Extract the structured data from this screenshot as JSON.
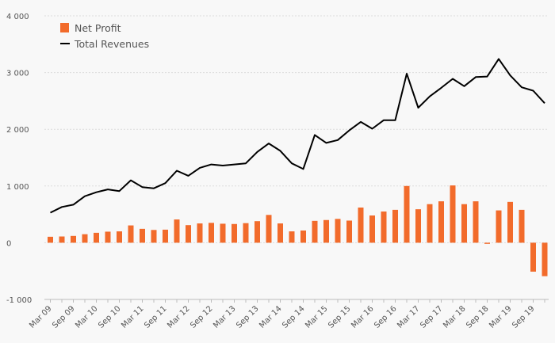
{
  "chart_data": {
    "type": "bar",
    "title": "",
    "xlabel": "",
    "ylabel": "",
    "ylim": [
      -1000,
      4000
    ],
    "yticks": [
      -1000,
      0,
      1000,
      2000,
      3000,
      4000
    ],
    "ytick_labels": [
      "-1 000",
      "0",
      "1 000",
      "2 000",
      "3 000",
      "4 000"
    ],
    "xtick_labels": [
      "Mar 09",
      "Sep 09",
      "Mar 10",
      "Sep 10",
      "Mar 11",
      "Sep 11",
      "Mar 12",
      "Sep 12",
      "Mar 13",
      "Sep 13",
      "Mar 14",
      "Sep 14",
      "Mar 15",
      "Sep 15",
      "Mar 16",
      "Sep 16",
      "Mar 17",
      "Sep 17",
      "Mar 18",
      "Sep 18",
      "Mar 19",
      "Sep 19"
    ],
    "legend": {
      "placement": "top-left"
    },
    "series": [
      {
        "name": "Net Profit",
        "kind": "bar",
        "color": "#f26b2b",
        "values": [
          105,
          110,
          120,
          150,
          175,
          195,
          200,
          305,
          245,
          225,
          230,
          410,
          310,
          340,
          350,
          335,
          330,
          345,
          380,
          490,
          340,
          200,
          215,
          385,
          400,
          420,
          390,
          620,
          480,
          550,
          580,
          1000,
          590,
          680,
          730,
          1010,
          680,
          730,
          -20,
          570,
          720,
          580,
          -510,
          -590
        ]
      },
      {
        "name": "Total Revenues",
        "kind": "line",
        "color": "#000000",
        "values": [
          530,
          630,
          670,
          820,
          890,
          940,
          910,
          1100,
          980,
          960,
          1050,
          1270,
          1180,
          1320,
          1380,
          1360,
          1380,
          1400,
          1600,
          1750,
          1620,
          1400,
          1300,
          1900,
          1760,
          1810,
          1980,
          2130,
          2010,
          2160,
          2160,
          2980,
          2380,
          2580,
          2730,
          2890,
          2760,
          2920,
          2930,
          3240,
          2950,
          2740,
          2680,
          2460
        ]
      }
    ]
  }
}
